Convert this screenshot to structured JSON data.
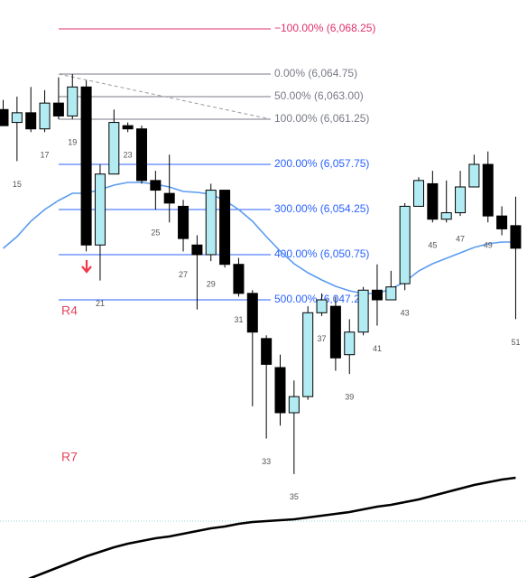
{
  "chart_data": {
    "type": "candlestick",
    "categories": [
      null,
      "15",
      null,
      "17",
      null,
      "19",
      null,
      "21",
      null,
      "23",
      null,
      "25",
      null,
      "27",
      null,
      "29",
      null,
      "31",
      null,
      "33",
      null,
      "35",
      null,
      "37",
      null,
      "39",
      null,
      "41",
      null,
      "43",
      null,
      "45",
      null,
      "47",
      null,
      "49",
      null,
      "51"
    ],
    "open": [
      6062,
      6061,
      6061.75,
      6060.5,
      6062.5,
      6061.5,
      6063.75,
      6051.5,
      6057,
      6060.75,
      6060.5,
      6056.5,
      6055.5,
      6054.5,
      6051.5,
      6050.75,
      6055.75,
      6050,
      6047.75,
      6044.25,
      6042,
      6038.5,
      6039.75,
      6046.25,
      6046.75,
      6043,
      6044.75,
      6048,
      6047.25,
      6048.5,
      6054.5,
      6056.25,
      6053.5,
      6054,
      6056,
      6057.75,
      6053.75,
      6053
    ],
    "high": [
      6062.75,
      6063,
      6063.75,
      6063.5,
      6064.5,
      6064.75,
      6064.25,
      6057.75,
      6062,
      6061,
      6060.75,
      6057.25,
      6058.5,
      6055,
      6052.25,
      6056.25,
      6055.75,
      6050.5,
      6048,
      6044.5,
      6043,
      6041,
      6046.75,
      6047.75,
      6047.5,
      6045.75,
      6048.25,
      6050,
      6049.5,
      6054.75,
      6056.75,
      6057.25,
      6056.5,
      6057.25,
      6058.5,
      6058.75,
      6054.5,
      6055.25
    ],
    "low": [
      6060.75,
      6058,
      6060.25,
      6060.25,
      6061.25,
      6061.25,
      6051,
      6048.75,
      6057,
      6060.25,
      6056.25,
      6054.25,
      6053.25,
      6051,
      6046.5,
      6050.25,
      6049.75,
      6047.5,
      6039,
      6036.5,
      6037.5,
      6033.75,
      6039.5,
      6046,
      6041.75,
      6041.5,
      6044.5,
      6045.25,
      6047.25,
      6048,
      6054.5,
      6053.25,
      6053.25,
      6053.75,
      6056,
      6053.25,
      6052.25,
      6045.75
    ],
    "close": [
      6060.75,
      6061.75,
      6060.5,
      6062.5,
      6061.5,
      6063.75,
      6051.5,
      6057,
      6061,
      6060.5,
      6056.5,
      6055.75,
      6054.75,
      6052,
      6050.75,
      6055.75,
      6050,
      6047.75,
      6044.75,
      6042.25,
      6038.5,
      6039.75,
      6046.25,
      6047.25,
      6042.75,
      6044.75,
      6048,
      6047.25,
      6048.25,
      6054.5,
      6056.5,
      6053.5,
      6054,
      6056,
      6057.75,
      6053.75,
      6052.75,
      6051.25
    ],
    "up_color": "#b2ebf2",
    "down_color": "#000000",
    "lines": [
      {
        "color": "#5b9cf0",
        "values": [
          6051.24,
          6052.15,
          6053.34,
          6054.25,
          6054.95,
          6055.51,
          6055.51,
          6055.79,
          6056.14,
          6056.35,
          6056.35,
          6056.21,
          6056.0,
          6055.65,
          6055.58,
          6055.44,
          6054.95,
          6054.25,
          6053.34,
          6052.15,
          6051.03,
          6050.05,
          6049.35,
          6048.79,
          6048.3,
          6047.95,
          6047.74,
          6047.74,
          6048.09,
          6048.65,
          6049.49,
          6050.05,
          6050.47,
          6050.89,
          6051.31,
          6051.59,
          6051.73,
          6051.73
        ]
      },
      {
        "color": "#000000",
        "values": [
          6024.64,
          6025.2,
          6025.69,
          6026.11,
          6026.53,
          6026.95,
          6027.37,
          6027.72,
          6028.07,
          6028.35,
          6028.56,
          6028.77,
          6028.91,
          6029.12,
          6029.33,
          6029.54,
          6029.68,
          6029.89,
          6030.03,
          6030.1,
          6030.17,
          6030.24,
          6030.38,
          6030.52,
          6030.66,
          6030.8,
          6031.01,
          6031.22,
          6031.36,
          6031.57,
          6031.78,
          6032.06,
          6032.34,
          6032.62,
          6032.9,
          6033.11,
          6033.32,
          6033.46
        ]
      }
    ],
    "fib_levels": [
      {
        "value": 6068.25,
        "label": "−100.00% (6,068.25)"
      },
      {
        "value": 6064.75,
        "label": "0.00% (6,064.75)"
      },
      {
        "value": 6063,
        "label": "50.00% (6,063.00)"
      },
      {
        "value": 6061.25,
        "label": "100.00% (6,061.25)"
      },
      {
        "value": 6057.75,
        "label": "200.00% (6,057.75)"
      },
      {
        "value": 6054.25,
        "label": "300.00% (6,054.25)"
      },
      {
        "value": 6050.75,
        "label": "400.00% (6,050.75)"
      },
      {
        "value": 6047.25,
        "label": "500.00% (6,047.25)"
      }
    ],
    "fib_colors": [
      "#e0306a",
      "#787b86",
      "#787b86",
      "#787b86",
      "#2962ff",
      "#2962ff",
      "#2962ff",
      "#2962ff"
    ],
    "annotations": [
      "R4",
      "R7"
    ],
    "ylim": [
      6025.69,
      6070.49
    ]
  }
}
